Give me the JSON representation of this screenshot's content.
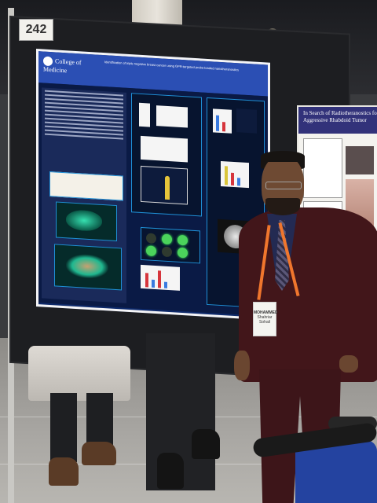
{
  "board_number": "242",
  "poster": {
    "logo_text": "College of Medicine",
    "title": "Identification of triple negative breast cancer using GPR-targeted probe-loaded nanotheranostics"
  },
  "neighbour_poster": {
    "title": "In Search of Radiotheranostics for Aggressive Rhabdoid Tumor"
  },
  "badge": {
    "name": "MOHAMMED",
    "line2": "Shahriar Sohail"
  }
}
